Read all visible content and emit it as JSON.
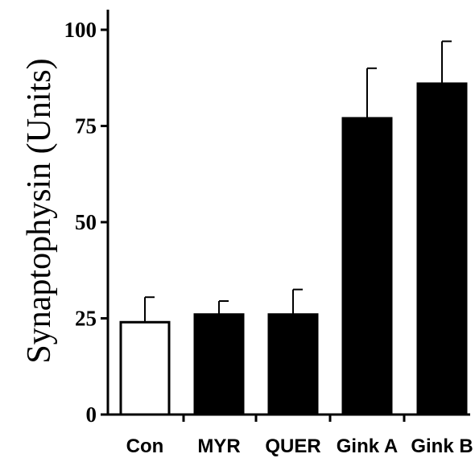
{
  "chart_data": {
    "type": "bar",
    "title": "",
    "xlabel": "",
    "ylabel": "Synaptophysin (Units)",
    "ylim": [
      0,
      100
    ],
    "yticks": [
      0,
      25,
      50,
      75,
      100
    ],
    "grid": false,
    "categories": [
      "Con",
      "MYR",
      "QUER",
      "Gink A",
      "Gink B"
    ],
    "values": [
      24,
      26,
      26,
      77,
      86
    ],
    "errors": [
      6.5,
      3.5,
      6.5,
      13,
      11
    ],
    "bar_colors": [
      "#ffffff",
      "#000000",
      "#000000",
      "#000000",
      "#000000"
    ]
  }
}
